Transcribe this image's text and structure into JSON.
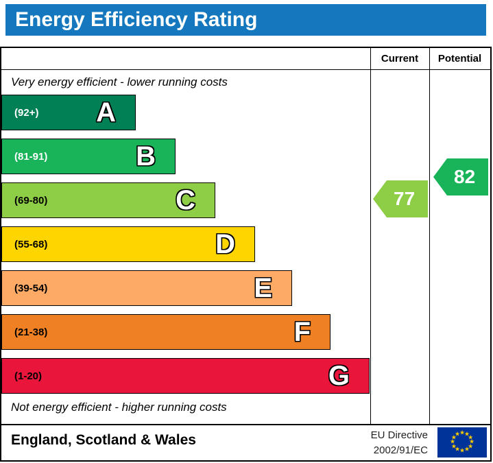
{
  "title": "Energy Efficiency Rating",
  "title_bar_color": "#1578be",
  "columns": {
    "current_label": "Current",
    "potential_label": "Potential"
  },
  "notes": {
    "top": "Very energy efficient - lower running costs",
    "bottom": "Not energy efficient - higher running costs"
  },
  "bands": [
    {
      "letter": "A",
      "range": "(92+)",
      "color": "#008054",
      "label_color": "#ffffff"
    },
    {
      "letter": "B",
      "range": "(81-91)",
      "color": "#19b459",
      "label_color": "#ffffff"
    },
    {
      "letter": "C",
      "range": "(69-80)",
      "color": "#8dce46",
      "label_color": "#000000"
    },
    {
      "letter": "D",
      "range": "(55-68)",
      "color": "#ffd500",
      "label_color": "#000000"
    },
    {
      "letter": "E",
      "range": "(39-54)",
      "color": "#fcaa65",
      "label_color": "#000000"
    },
    {
      "letter": "F",
      "range": "(21-38)",
      "color": "#ef8023",
      "label_color": "#000000"
    },
    {
      "letter": "G",
      "range": "(1-20)",
      "color": "#e9153b",
      "label_color": "#000000"
    }
  ],
  "ratings": {
    "current": {
      "value": "77",
      "color": "#8dce46",
      "band": "C"
    },
    "potential": {
      "value": "82",
      "color": "#19b459",
      "band": "B"
    }
  },
  "footer": {
    "region": "England, Scotland & Wales",
    "directive_line1": "EU Directive",
    "directive_line2": "2002/91/EC",
    "flag_colors": {
      "field": "#003399",
      "stars": "#ffcc00"
    }
  },
  "chart_data": {
    "type": "bar",
    "title": "Energy Efficiency Rating",
    "categories": [
      "A",
      "B",
      "C",
      "D",
      "E",
      "F",
      "G"
    ],
    "band_ranges": [
      "92+",
      "81-91",
      "69-80",
      "55-68",
      "39-54",
      "21-38",
      "1-20"
    ],
    "band_colors": [
      "#008054",
      "#19b459",
      "#8dce46",
      "#ffd500",
      "#fcaa65",
      "#ef8023",
      "#e9153b"
    ],
    "series": [
      {
        "name": "Current",
        "values": [
          77
        ],
        "band": "C"
      },
      {
        "name": "Potential",
        "values": [
          82
        ],
        "band": "B"
      }
    ],
    "top_annotation": "Very energy efficient - lower running costs",
    "bottom_annotation": "Not energy efficient - higher running costs",
    "region": "England, Scotland & Wales",
    "directive": "EU Directive 2002/91/EC"
  }
}
